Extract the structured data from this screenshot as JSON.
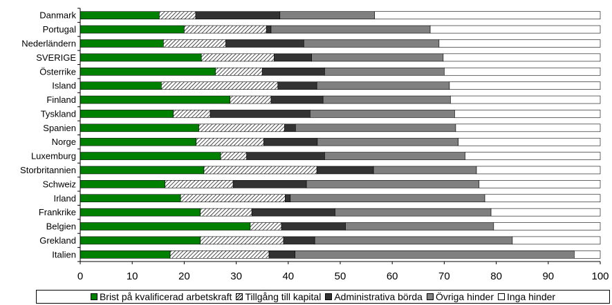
{
  "chart_data": {
    "type": "bar",
    "orientation": "horizontal",
    "stacked": true,
    "categories": [
      "Danmark",
      "Portugal",
      "Nederländern",
      "SVERIGE",
      "Österrike",
      "Island",
      "Finland",
      "Tyskland",
      "Spanien",
      "Norge",
      "Luxemburg",
      "Storbritannien",
      "Schweiz",
      "Irland",
      "Frankrike",
      "Belgien",
      "Grekland",
      "Italien"
    ],
    "series": [
      {
        "name": "Brist på kvalificerad arbetskraft",
        "color": "#008000",
        "pattern": "solid",
        "values": [
          15.2,
          20.0,
          16.0,
          23.3,
          26.0,
          15.6,
          28.8,
          17.9,
          22.8,
          22.3,
          27.0,
          23.8,
          16.3,
          19.3,
          23.1,
          32.7,
          23.1,
          17.3
        ]
      },
      {
        "name": "Tillgång till kapital",
        "color": "#ffffff",
        "pattern": "hatch",
        "values": [
          7.0,
          15.8,
          12.0,
          14.0,
          9.0,
          22.4,
          7.9,
          7.1,
          16.5,
          13.0,
          5.0,
          21.7,
          13.1,
          20.1,
          9.9,
          6.0,
          16.0,
          19.0
        ]
      },
      {
        "name": "Administrativa börda",
        "color": "#333333",
        "pattern": "solid",
        "values": [
          16.2,
          0.9,
          15.0,
          7.2,
          12.0,
          7.5,
          10.0,
          19.2,
          2.1,
          10.3,
          15.0,
          10.9,
          14.1,
          1.0,
          16.0,
          12.3,
          6.0,
          5.0
        ]
      },
      {
        "name": "Övriga hinder",
        "color": "#808080",
        "pattern": "solid",
        "values": [
          18.2,
          30.6,
          26.0,
          25.3,
          23.0,
          25.5,
          24.5,
          27.8,
          30.8,
          27.1,
          27.0,
          19.8,
          33.2,
          37.4,
          30.0,
          28.5,
          38.0,
          53.7
        ]
      },
      {
        "name": "Inga hinder",
        "color": "#ffffff",
        "pattern": "solid",
        "values": [
          43.4,
          32.7,
          31.0,
          30.2,
          30.0,
          29.0,
          28.8,
          28.0,
          27.8,
          27.3,
          26.0,
          23.8,
          23.3,
          22.2,
          21.0,
          20.5,
          16.9,
          5.0
        ]
      }
    ],
    "xlim": [
      0,
      100
    ],
    "xticks": [
      0,
      10,
      20,
      30,
      40,
      50,
      60,
      70,
      80,
      90,
      100
    ],
    "title": "",
    "xlabel": "",
    "ylabel": "",
    "grid": false,
    "legend_position": "bottom"
  }
}
